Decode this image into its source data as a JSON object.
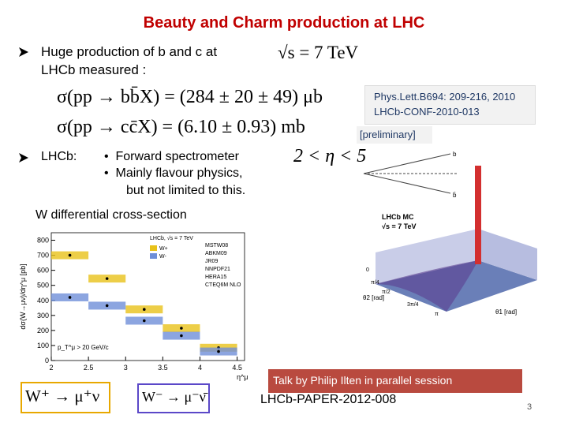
{
  "title": "Beauty and Charm production at LHC",
  "bullet1": {
    "lines": [
      "Huge production of  b and c  at",
      "LHCb measured  :"
    ],
    "formula": "√s = 7 TeV"
  },
  "formulas": [
    "σ(pp → bb̄X) = (284 ± 20 ± 49) μb",
    "σ(pp → cc̄X) = (6.10 ± 0.93) mb"
  ],
  "references": [
    "Phys.Lett.B694: 209-216, 2010",
    "LHCb-CONF-2010-013"
  ],
  "preliminary": "[preliminary]",
  "bullet2": {
    "label": "LHCb:",
    "items": [
      "Forward spectrometer",
      "Mainly flavour physics,"
    ],
    "continuation": "but not limited  to  this.",
    "formula": "2 < η < 5"
  },
  "section": "W  differential  cross-section",
  "w_plot": {
    "type": "bar",
    "xlabel": "η^μ",
    "ylabel": "dσ(W→μν)/dη^μ [pb]",
    "legend_title": "LHCb, √s = 7 TeV",
    "note": "p_T^μ > 20 GeV/c",
    "bins": [
      2,
      2.5,
      3,
      3.5,
      4,
      4.5
    ],
    "series": [
      {
        "name": "W+",
        "color": "#e8c21a",
        "values": [
          700,
          545,
          340,
          215,
          85
        ]
      },
      {
        "name": "W-",
        "color": "#6f8fd8",
        "values": [
          420,
          365,
          265,
          165,
          60
        ]
      }
    ],
    "theory": [
      "MSTW08",
      "ABKM09",
      "JR09",
      "NNPDF21",
      "HERA15",
      "CTEQ6M NLO"
    ],
    "xlim": [
      2,
      4.6
    ],
    "ylim": [
      0,
      850
    ],
    "xticks": [
      2,
      2.5,
      3,
      3.5,
      4,
      4.5
    ],
    "yticks": [
      0,
      100,
      200,
      300,
      400,
      500,
      600,
      700,
      800
    ]
  },
  "mc_plot": {
    "title": "LHCb MC",
    "subtitle": "√s = 7 TeV",
    "axis1": "θ1 [rad]",
    "axis2": "θ2 [rad]",
    "tick_labels": [
      "0",
      "π/4",
      "π/2",
      "3π/4",
      "π"
    ],
    "particles": [
      "b",
      "b̄"
    ]
  },
  "talk_note": "Talk  by Philip  Ilten in parallel session",
  "paper_ref": "LHCb-PAPER-2012-008",
  "w_plus": "W⁺ → μ⁺ν",
  "w_minus": "W⁻ → μ⁻ν̄",
  "page_number": "3"
}
